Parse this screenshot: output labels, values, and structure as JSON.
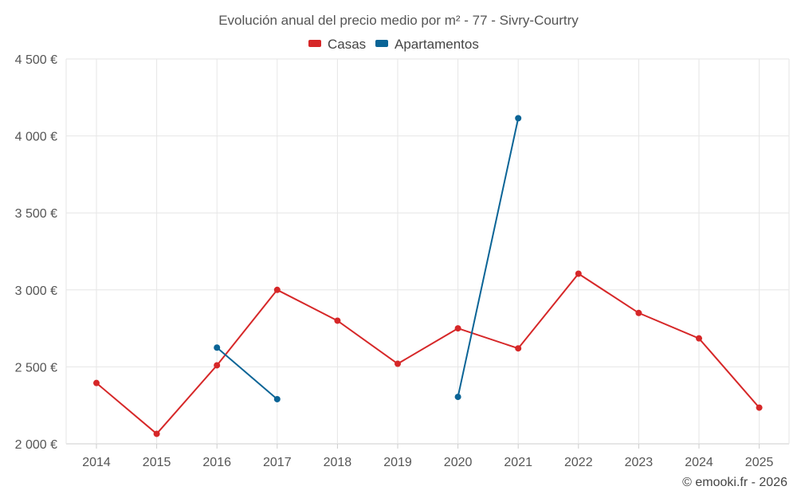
{
  "chart_data": {
    "type": "line",
    "title": "Evolución anual del precio medio por m² - 77 - Sivry-Courtry",
    "categories": [
      "2014",
      "2015",
      "2016",
      "2017",
      "2018",
      "2019",
      "2020",
      "2021",
      "2022",
      "2023",
      "2024",
      "2025"
    ],
    "ylim": [
      2000,
      4500
    ],
    "yticks": [
      2000,
      2500,
      3000,
      3500,
      4000,
      4500
    ],
    "ytick_labels": [
      "2 000 €",
      "2 500 €",
      "3 000 €",
      "3 500 €",
      "4 000 €",
      "4 500 €"
    ],
    "series": [
      {
        "name": "Casas",
        "color": "#d62728",
        "values": [
          2395,
          2065,
          2510,
          3000,
          2800,
          2520,
          2750,
          2620,
          3105,
          2850,
          2685,
          2235
        ]
      },
      {
        "name": "Apartamentos",
        "color": "#0a6496",
        "values": [
          null,
          null,
          2625,
          2290,
          null,
          null,
          2305,
          4115,
          null,
          null,
          null,
          null
        ]
      }
    ],
    "legend_position": "top-center",
    "grid": true
  },
  "credit": "© emooki.fr - 2026"
}
